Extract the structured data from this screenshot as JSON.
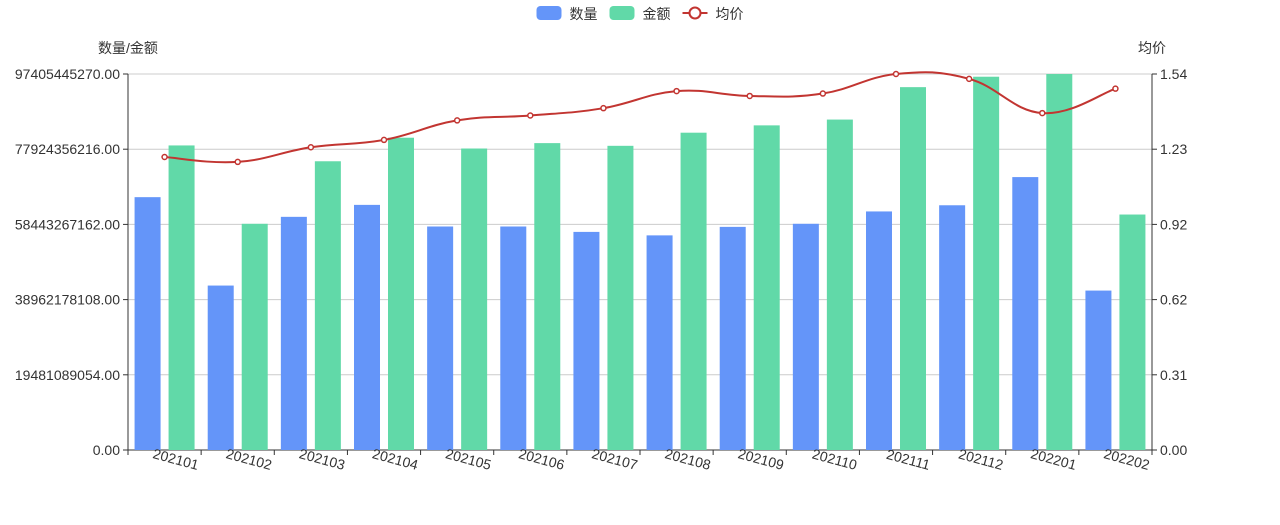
{
  "chart_data": {
    "type": "bar",
    "categories": [
      "202101",
      "202102",
      "202103",
      "202104",
      "202105",
      "202106",
      "202107",
      "202108",
      "202109",
      "202110",
      "202111",
      "202112",
      "202201",
      "202202"
    ],
    "series": [
      {
        "name": "数量",
        "type": "bar",
        "axis": "left",
        "color": "#6495F9",
        "values": [
          65500000000,
          42600000000,
          60400000000,
          63500000000,
          57900000000,
          57900000000,
          56500000000,
          55600000000,
          57800000000,
          58600000000,
          61800000000,
          63400000000,
          70700000000,
          41300000000
        ]
      },
      {
        "name": "金额",
        "type": "bar",
        "axis": "left",
        "color": "#61D9A8",
        "values": [
          78900000000,
          58600000000,
          74800000000,
          80900000000,
          78100000000,
          79500000000,
          78800000000,
          82200000000,
          84100000000,
          85600000000,
          94000000000,
          96700000000,
          97400000000,
          61000000000
        ]
      },
      {
        "name": "均价",
        "type": "line",
        "axis": "right",
        "color": "#C23531",
        "values": [
          1.2,
          1.18,
          1.24,
          1.27,
          1.35,
          1.37,
          1.4,
          1.47,
          1.45,
          1.46,
          1.54,
          1.52,
          1.38,
          1.48
        ]
      }
    ],
    "ylabel_left": "数量/金额",
    "ylabel_right": "均价",
    "ylim_left": [
      0,
      97405445270
    ],
    "ylim_right": [
      0,
      1.54
    ],
    "yticks_left": [
      "0.00",
      "19481089054.00",
      "38962178108.00",
      "58443267162.00",
      "77924356216.00",
      "97405445270.00"
    ],
    "yticks_right": [
      "0.00",
      "0.31",
      "0.62",
      "0.92",
      "1.23",
      "1.54"
    ],
    "legend_position": "top-center",
    "grid": true,
    "xtick_rotation": -15
  }
}
